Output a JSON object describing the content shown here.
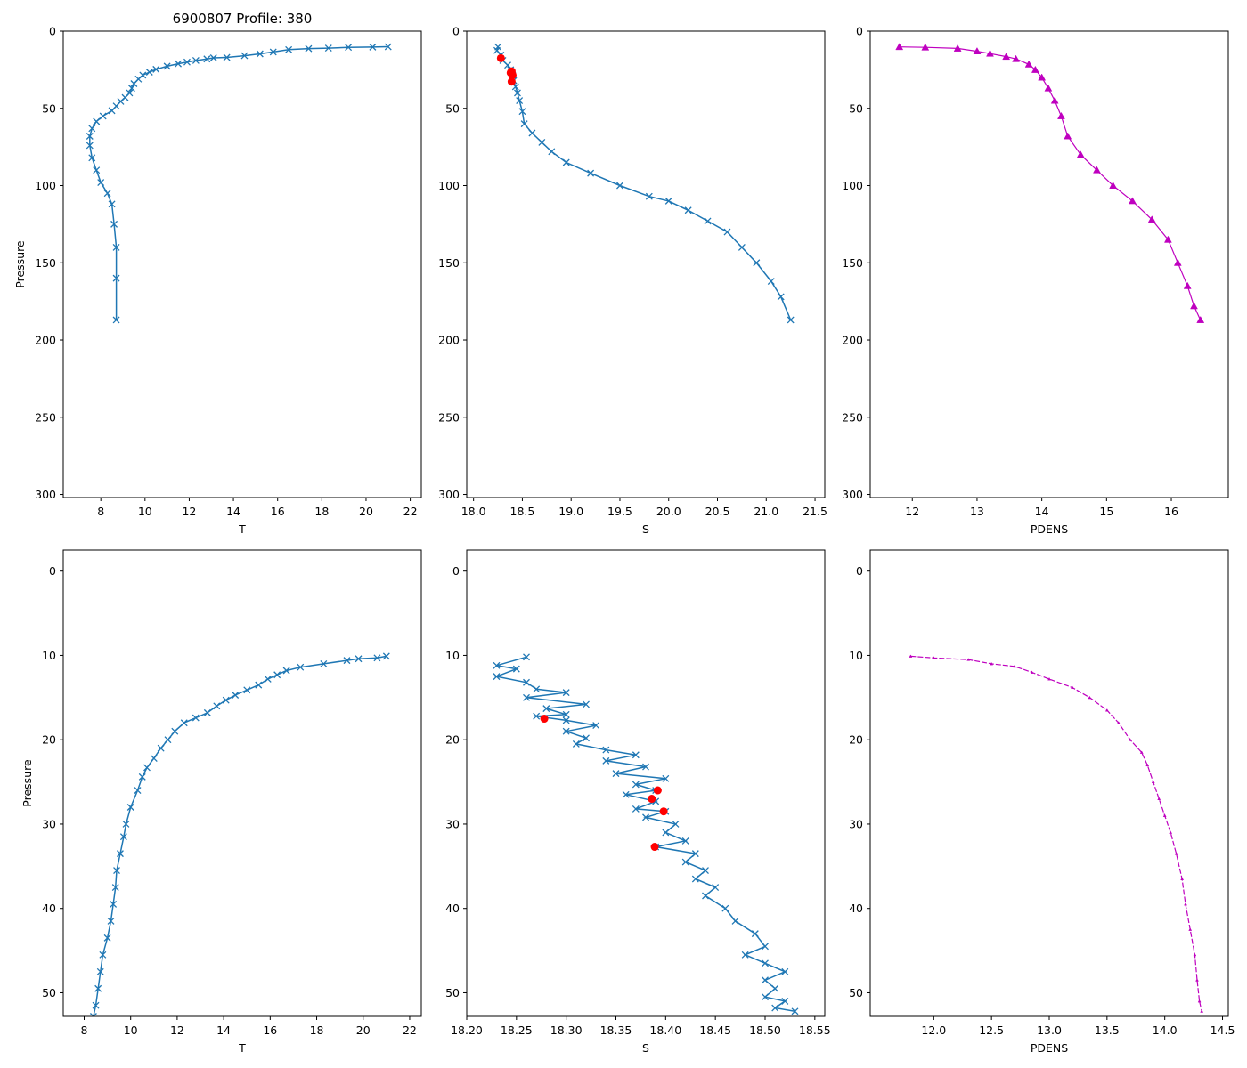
{
  "title": "6900807 Profile: 380",
  "colors": {
    "series": "#1f77b4",
    "flag": "#ff0000",
    "density": "#bf00bf",
    "axis": "#000000",
    "background": "#ffffff"
  },
  "chart_data": [
    {
      "type": "line",
      "marker": "x",
      "color": "#1f77b4",
      "xlabel": "T",
      "ylabel": "Pressure",
      "title": "6900807 Profile: 380",
      "xlim": [
        6.3,
        22.5
      ],
      "ylim": [
        302,
        0
      ],
      "xticks": [
        8,
        10,
        12,
        14,
        16,
        18,
        20,
        22
      ],
      "yticks": [
        0,
        50,
        100,
        150,
        200,
        250,
        300
      ],
      "points": [
        [
          21.0,
          10.1
        ],
        [
          20.3,
          10.3
        ],
        [
          19.2,
          10.5
        ],
        [
          18.3,
          11.0
        ],
        [
          17.4,
          11.3
        ],
        [
          16.5,
          12.0
        ],
        [
          15.8,
          13.5
        ],
        [
          15.2,
          14.7
        ],
        [
          14.5,
          15.9
        ],
        [
          13.7,
          17.0
        ],
        [
          13.1,
          17.3
        ],
        [
          12.8,
          18.0
        ],
        [
          12.3,
          19.0
        ],
        [
          11.9,
          20.0
        ],
        [
          11.5,
          21.1
        ],
        [
          11.0,
          22.7
        ],
        [
          10.5,
          24.7
        ],
        [
          10.2,
          26.5
        ],
        [
          9.9,
          28.5
        ],
        [
          9.7,
          31.0
        ],
        [
          9.5,
          34.0
        ],
        [
          9.4,
          37.0
        ],
        [
          9.3,
          40.0
        ],
        [
          9.1,
          43.0
        ],
        [
          8.9,
          45.5
        ],
        [
          8.7,
          48.5
        ],
        [
          8.5,
          51.5
        ],
        [
          8.1,
          55.0
        ],
        [
          7.8,
          58.5
        ],
        [
          7.6,
          63.0
        ],
        [
          7.5,
          68.0
        ],
        [
          7.5,
          74.0
        ],
        [
          7.6,
          82.0
        ],
        [
          7.8,
          90.0
        ],
        [
          8.0,
          98.0
        ],
        [
          8.3,
          105.0
        ],
        [
          8.5,
          112.0
        ],
        [
          8.6,
          125.0
        ],
        [
          8.7,
          140.0
        ],
        [
          8.7,
          160.0
        ],
        [
          8.7,
          187.0
        ]
      ],
      "flags": []
    },
    {
      "type": "line",
      "marker": "x",
      "color": "#1f77b4",
      "xlabel": "S",
      "ylabel": "",
      "xlim": [
        17.93,
        21.6
      ],
      "ylim": [
        302,
        0
      ],
      "xticks": [
        18.0,
        18.5,
        19.0,
        19.5,
        20.0,
        20.5,
        21.0,
        21.5
      ],
      "yticks": [
        0,
        50,
        100,
        150,
        200,
        250,
        300
      ],
      "points": [
        [
          18.25,
          10.2
        ],
        [
          18.24,
          12.5
        ],
        [
          18.28,
          15.5
        ],
        [
          18.3,
          19.0
        ],
        [
          18.35,
          22.0
        ],
        [
          18.38,
          25.0
        ],
        [
          18.4,
          28.5
        ],
        [
          18.41,
          32.0
        ],
        [
          18.43,
          36.0
        ],
        [
          18.45,
          40.0
        ],
        [
          18.47,
          45.0
        ],
        [
          18.5,
          52.0
        ],
        [
          18.52,
          60.0
        ],
        [
          18.6,
          66.0
        ],
        [
          18.7,
          72.0
        ],
        [
          18.8,
          78.0
        ],
        [
          18.95,
          85.0
        ],
        [
          19.2,
          92.0
        ],
        [
          19.5,
          100.0
        ],
        [
          19.8,
          107.0
        ],
        [
          20.0,
          110.0
        ],
        [
          20.2,
          116.0
        ],
        [
          20.4,
          123.0
        ],
        [
          20.6,
          130.0
        ],
        [
          20.75,
          140.0
        ],
        [
          20.9,
          150.0
        ],
        [
          21.05,
          162.0
        ],
        [
          21.15,
          172.0
        ],
        [
          21.25,
          187.0
        ]
      ],
      "flags": [
        [
          18.28,
          17.5
        ],
        [
          18.39,
          26.0
        ],
        [
          18.38,
          27.0
        ],
        [
          18.4,
          28.5
        ],
        [
          18.39,
          32.7
        ]
      ]
    },
    {
      "type": "line",
      "marker": "^",
      "color": "#bf00bf",
      "xlabel": "PDENS",
      "ylabel": "",
      "xlim": [
        11.35,
        16.88
      ],
      "ylim": [
        302,
        0
      ],
      "xticks": [
        12,
        13,
        14,
        15,
        16
      ],
      "yticks": [
        0,
        50,
        100,
        150,
        200,
        250,
        300
      ],
      "points": [
        [
          11.8,
          10.2
        ],
        [
          12.2,
          10.5
        ],
        [
          12.7,
          11.2
        ],
        [
          13.0,
          13.0
        ],
        [
          13.2,
          14.5
        ],
        [
          13.45,
          16.5
        ],
        [
          13.6,
          18.0
        ],
        [
          13.8,
          21.5
        ],
        [
          13.9,
          25.0
        ],
        [
          14.0,
          30.0
        ],
        [
          14.1,
          37.0
        ],
        [
          14.2,
          45.0
        ],
        [
          14.3,
          55.0
        ],
        [
          14.4,
          68.0
        ],
        [
          14.6,
          80.0
        ],
        [
          14.85,
          90.0
        ],
        [
          15.1,
          100.0
        ],
        [
          15.4,
          110.0
        ],
        [
          15.7,
          122.0
        ],
        [
          15.95,
          135.0
        ],
        [
          16.1,
          150.0
        ],
        [
          16.25,
          165.0
        ],
        [
          16.35,
          178.0
        ],
        [
          16.45,
          187.0
        ]
      ],
      "flags": []
    },
    {
      "type": "line",
      "marker": "x",
      "color": "#1f77b4",
      "xlabel": "T",
      "ylabel": "Pressure",
      "xlim": [
        7.1,
        22.5
      ],
      "ylim": [
        52.8,
        -2.5
      ],
      "xticks": [
        8,
        10,
        12,
        14,
        16,
        18,
        20,
        22
      ],
      "yticks": [
        0,
        10,
        20,
        30,
        40,
        50
      ],
      "points": [
        [
          21.0,
          10.1
        ],
        [
          20.6,
          10.3
        ],
        [
          19.8,
          10.4
        ],
        [
          19.3,
          10.6
        ],
        [
          18.3,
          11.0
        ],
        [
          17.3,
          11.4
        ],
        [
          16.7,
          11.8
        ],
        [
          16.3,
          12.3
        ],
        [
          15.9,
          12.8
        ],
        [
          15.5,
          13.5
        ],
        [
          15.0,
          14.1
        ],
        [
          14.5,
          14.7
        ],
        [
          14.1,
          15.3
        ],
        [
          13.7,
          16.0
        ],
        [
          13.3,
          16.8
        ],
        [
          12.8,
          17.4
        ],
        [
          12.3,
          18.0
        ],
        [
          11.9,
          19.0
        ],
        [
          11.6,
          20.0
        ],
        [
          11.3,
          21.0
        ],
        [
          11.0,
          22.2
        ],
        [
          10.7,
          23.3
        ],
        [
          10.5,
          24.4
        ],
        [
          10.3,
          26.0
        ],
        [
          10.0,
          28.0
        ],
        [
          9.8,
          30.0
        ],
        [
          9.7,
          31.5
        ],
        [
          9.55,
          33.5
        ],
        [
          9.4,
          35.5
        ],
        [
          9.35,
          37.5
        ],
        [
          9.25,
          39.5
        ],
        [
          9.15,
          41.5
        ],
        [
          9.0,
          43.5
        ],
        [
          8.8,
          45.5
        ],
        [
          8.7,
          47.5
        ],
        [
          8.6,
          49.5
        ],
        [
          8.5,
          51.5
        ],
        [
          8.4,
          52.8
        ]
      ],
      "flags": []
    },
    {
      "type": "line",
      "marker": "x",
      "color": "#1f77b4",
      "xlabel": "S",
      "ylabel": "",
      "xlim": [
        18.2,
        18.56
      ],
      "ylim": [
        52.8,
        -2.5
      ],
      "xticks": [
        18.2,
        18.25,
        18.3,
        18.35,
        18.4,
        18.45,
        18.5,
        18.55
      ],
      "yticks": [
        0,
        10,
        20,
        30,
        40,
        50
      ],
      "points": [
        [
          18.26,
          10.2
        ],
        [
          18.23,
          11.2
        ],
        [
          18.25,
          11.6
        ],
        [
          18.23,
          12.5
        ],
        [
          18.26,
          13.2
        ],
        [
          18.27,
          14.0
        ],
        [
          18.3,
          14.4
        ],
        [
          18.26,
          15.0
        ],
        [
          18.32,
          15.8
        ],
        [
          18.28,
          16.3
        ],
        [
          18.3,
          17.0
        ],
        [
          18.27,
          17.2
        ],
        [
          18.3,
          17.7
        ],
        [
          18.33,
          18.3
        ],
        [
          18.3,
          19.0
        ],
        [
          18.32,
          19.8
        ],
        [
          18.31,
          20.5
        ],
        [
          18.34,
          21.2
        ],
        [
          18.37,
          21.8
        ],
        [
          18.34,
          22.5
        ],
        [
          18.38,
          23.2
        ],
        [
          18.35,
          24.0
        ],
        [
          18.4,
          24.6
        ],
        [
          18.37,
          25.3
        ],
        [
          18.39,
          26.0
        ],
        [
          18.36,
          26.5
        ],
        [
          18.39,
          27.3
        ],
        [
          18.37,
          28.2
        ],
        [
          18.4,
          28.5
        ],
        [
          18.38,
          29.2
        ],
        [
          18.41,
          30.0
        ],
        [
          18.4,
          31.0
        ],
        [
          18.42,
          32.0
        ],
        [
          18.39,
          32.7
        ],
        [
          18.43,
          33.5
        ],
        [
          18.42,
          34.5
        ],
        [
          18.44,
          35.5
        ],
        [
          18.43,
          36.5
        ],
        [
          18.45,
          37.5
        ],
        [
          18.44,
          38.5
        ],
        [
          18.46,
          40.0
        ],
        [
          18.47,
          41.5
        ],
        [
          18.49,
          43.0
        ],
        [
          18.5,
          44.5
        ],
        [
          18.48,
          45.5
        ],
        [
          18.5,
          46.5
        ],
        [
          18.52,
          47.5
        ],
        [
          18.5,
          48.5
        ],
        [
          18.51,
          49.5
        ],
        [
          18.5,
          50.5
        ],
        [
          18.52,
          51.0
        ],
        [
          18.51,
          51.8
        ],
        [
          18.53,
          52.2
        ]
      ],
      "flags": [
        [
          18.278,
          17.5
        ],
        [
          18.392,
          26.0
        ],
        [
          18.386,
          27.0
        ],
        [
          18.398,
          28.5
        ],
        [
          18.389,
          32.7
        ]
      ]
    },
    {
      "type": "line",
      "marker": "^",
      "color": "#bf00bf",
      "xlabel": "PDENS",
      "ylabel": "",
      "xlim": [
        11.45,
        14.55
      ],
      "ylim": [
        52.8,
        -2.5
      ],
      "xticks": [
        12.0,
        12.5,
        13.0,
        13.5,
        14.0,
        14.5
      ],
      "yticks": [
        0,
        10,
        20,
        30,
        40,
        50
      ],
      "points": [
        [
          11.8,
          10.1
        ],
        [
          12.0,
          10.3
        ],
        [
          12.3,
          10.5
        ],
        [
          12.5,
          11.0
        ],
        [
          12.7,
          11.3
        ],
        [
          12.85,
          12.0
        ],
        [
          13.0,
          12.8
        ],
        [
          13.2,
          13.8
        ],
        [
          13.35,
          15.0
        ],
        [
          13.5,
          16.5
        ],
        [
          13.6,
          18.0
        ],
        [
          13.7,
          20.0
        ],
        [
          13.8,
          21.5
        ],
        [
          13.85,
          23.0
        ],
        [
          13.9,
          25.0
        ],
        [
          13.95,
          27.0
        ],
        [
          14.0,
          29.0
        ],
        [
          14.05,
          31.0
        ],
        [
          14.1,
          33.5
        ],
        [
          14.15,
          36.5
        ],
        [
          14.18,
          39.5
        ],
        [
          14.22,
          42.5
        ],
        [
          14.26,
          45.5
        ],
        [
          14.28,
          48.5
        ],
        [
          14.3,
          51.0
        ],
        [
          14.32,
          52.2
        ]
      ],
      "flags": []
    }
  ]
}
